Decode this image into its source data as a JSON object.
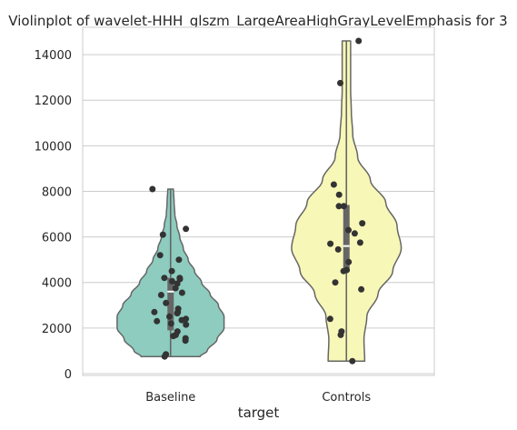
{
  "chart_data": {
    "type": "violin",
    "title": "Violinplot of wavelet-HHH_glszm_LargeAreaHighGrayLevelEmphasis for 3",
    "xlabel": "target",
    "ylabel": "",
    "categories": [
      "Baseline",
      "Controls"
    ],
    "ylim": [
      0,
      15200
    ],
    "yticks": [
      0,
      2000,
      4000,
      6000,
      8000,
      10000,
      12000,
      14000
    ],
    "grid": "horizontal",
    "colors": {
      "Baseline": "#8dccbf",
      "Controls": "#f7f7b7",
      "outline": "#666666",
      "points": "#333333",
      "grid": "#cccccc"
    },
    "series": [
      {
        "category": "Baseline",
        "min": 750,
        "max": 8100,
        "box": {
          "q1": 1900,
          "median": 3600,
          "q3": 4200
        },
        "points": [
          8100,
          6350,
          6100,
          5200,
          5000,
          4500,
          4200,
          4200,
          4150,
          4050,
          3950,
          3750,
          3550,
          3450,
          3100,
          2850,
          2700,
          2700,
          2650,
          2500,
          2400,
          2350,
          2300,
          2200,
          2150,
          1850,
          1700,
          1650,
          1550,
          1450,
          850,
          750
        ],
        "density": [
          [
            750,
            0.42
          ],
          [
            1000,
            0.52
          ],
          [
            1500,
            0.66
          ],
          [
            2000,
            0.76
          ],
          [
            2500,
            0.76
          ],
          [
            3000,
            0.68
          ],
          [
            3500,
            0.56
          ],
          [
            4000,
            0.44
          ],
          [
            4500,
            0.34
          ],
          [
            5000,
            0.25
          ],
          [
            5500,
            0.18
          ],
          [
            6000,
            0.13
          ],
          [
            6500,
            0.09
          ],
          [
            7000,
            0.06
          ],
          [
            7500,
            0.05
          ],
          [
            8100,
            0.04
          ]
        ]
      },
      {
        "category": "Controls",
        "min": 550,
        "max": 14600,
        "box": {
          "q1": 4500,
          "median": 5600,
          "q3": 7400
        },
        "points": [
          14600,
          12750,
          8300,
          7850,
          7350,
          7350,
          6600,
          6300,
          6150,
          5750,
          5700,
          5450,
          4900,
          4550,
          4500,
          4000,
          3700,
          2400,
          1850,
          1700,
          550
        ],
        "density": [
          [
            550,
            0.26
          ],
          [
            1500,
            0.25
          ],
          [
            2500,
            0.29
          ],
          [
            3500,
            0.45
          ],
          [
            4500,
            0.66
          ],
          [
            5500,
            0.78
          ],
          [
            6500,
            0.72
          ],
          [
            7500,
            0.56
          ],
          [
            8500,
            0.34
          ],
          [
            9500,
            0.16
          ],
          [
            10500,
            0.09
          ],
          [
            11500,
            0.07
          ],
          [
            12500,
            0.06
          ],
          [
            13500,
            0.06
          ],
          [
            14600,
            0.06
          ]
        ]
      }
    ]
  }
}
